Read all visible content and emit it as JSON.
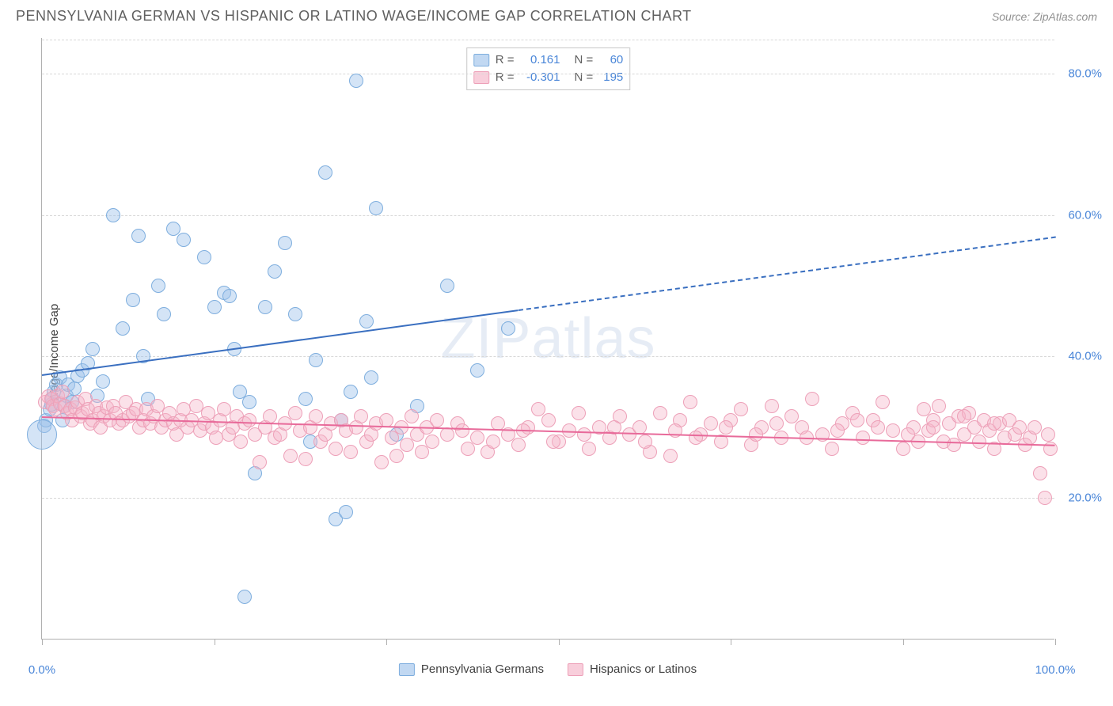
{
  "header": {
    "title": "PENNSYLVANIA GERMAN VS HISPANIC OR LATINO WAGE/INCOME GAP CORRELATION CHART",
    "source": "Source: ZipAtlas.com"
  },
  "chart": {
    "type": "scatter",
    "ylabel": "Wage/Income Gap",
    "watermark": "ZIPatlas",
    "background_color": "#ffffff",
    "grid_color": "#d8d8d8",
    "axis_color": "#b0b0b0",
    "tick_label_color": "#4a86d8",
    "xlim": [
      0,
      100
    ],
    "ylim": [
      0,
      85
    ],
    "x_ticks": [
      0,
      17,
      34,
      51,
      68,
      85,
      100
    ],
    "x_tick_labels": {
      "0": "0.0%",
      "100": "100.0%"
    },
    "y_gridlines": [
      20,
      40,
      60,
      80
    ],
    "y_grid_labels": {
      "20": "20.0%",
      "40": "40.0%",
      "60": "60.0%",
      "80": "80.0%"
    },
    "marker_size": 18,
    "series": [
      {
        "name": "Pennsylvania Germans",
        "color_fill": "rgba(160,195,235,0.45)",
        "color_stroke": "#7eaede",
        "r_value": "0.161",
        "n_value": "60",
        "trend": {
          "x1": 0,
          "y1": 37.5,
          "x2": 100,
          "y2": 57,
          "solid_until_x": 47,
          "color": "#3a6fc0"
        },
        "points": [
          [
            0.2,
            30.2
          ],
          [
            0.4,
            31.0
          ],
          [
            0.8,
            32.5
          ],
          [
            0.9,
            33.2
          ],
          [
            1.0,
            34.0
          ],
          [
            1.2,
            35.0
          ],
          [
            1.4,
            36.0
          ],
          [
            1.8,
            37.0
          ],
          [
            2.0,
            31.0
          ],
          [
            2.2,
            33.0
          ],
          [
            2.4,
            34.5
          ],
          [
            2.6,
            36.0
          ],
          [
            3.0,
            33.5
          ],
          [
            3.2,
            35.5
          ],
          [
            3.5,
            37.2
          ],
          [
            4.0,
            38.0
          ],
          [
            4.5,
            39.0
          ],
          [
            5.0,
            41.0
          ],
          [
            5.5,
            34.5
          ],
          [
            6.0,
            36.5
          ],
          [
            7.0,
            60.0
          ],
          [
            8.0,
            44.0
          ],
          [
            9.0,
            48.0
          ],
          [
            9.5,
            57.0
          ],
          [
            10.0,
            40.0
          ],
          [
            10.5,
            34.0
          ],
          [
            11.5,
            50.0
          ],
          [
            12.0,
            46.0
          ],
          [
            13.0,
            58.0
          ],
          [
            14.0,
            56.5
          ],
          [
            16.0,
            54.0
          ],
          [
            17.0,
            47.0
          ],
          [
            18.0,
            49.0
          ],
          [
            18.5,
            48.5
          ],
          [
            19.0,
            41.0
          ],
          [
            19.5,
            35.0
          ],
          [
            20.0,
            6.0
          ],
          [
            20.5,
            33.5
          ],
          [
            21.0,
            23.5
          ],
          [
            22.0,
            47.0
          ],
          [
            23.0,
            52.0
          ],
          [
            24.0,
            56.0
          ],
          [
            25.0,
            46.0
          ],
          [
            26.0,
            34.0
          ],
          [
            26.5,
            28.0
          ],
          [
            27.0,
            39.5
          ],
          [
            28.0,
            66.0
          ],
          [
            29.0,
            17.0
          ],
          [
            29.5,
            31.0
          ],
          [
            30.0,
            18.0
          ],
          [
            30.5,
            35.0
          ],
          [
            31.0,
            79.0
          ],
          [
            32.0,
            45.0
          ],
          [
            32.5,
            37.0
          ],
          [
            33.0,
            61.0
          ],
          [
            35.0,
            29.0
          ],
          [
            37.0,
            33.0
          ],
          [
            40.0,
            50.0
          ],
          [
            43.0,
            38.0
          ],
          [
            46.0,
            44.0
          ]
        ],
        "points_custom_size": [
          [
            0.0,
            29.0,
            38
          ]
        ]
      },
      {
        "name": "Hispanics or Latinos",
        "color_fill": "rgba(245,180,200,0.40)",
        "color_stroke": "#eda0b8",
        "r_value": "-0.301",
        "n_value": "195",
        "trend": {
          "x1": 0,
          "y1": 31.5,
          "x2": 100,
          "y2": 27.5,
          "solid_until_x": 100,
          "color": "#e86a9a"
        },
        "points": [
          [
            0.3,
            33.5
          ],
          [
            0.6,
            34.3
          ],
          [
            0.9,
            34.0
          ],
          [
            1.1,
            33.0
          ],
          [
            1.3,
            32.5
          ],
          [
            1.6,
            34.5
          ],
          [
            1.8,
            33.3
          ],
          [
            2.0,
            35.0
          ],
          [
            2.3,
            33.0
          ],
          [
            2.5,
            32.0
          ],
          [
            2.8,
            32.5
          ],
          [
            3.0,
            31.0
          ],
          [
            3.3,
            32.8
          ],
          [
            3.5,
            33.5
          ],
          [
            3.8,
            31.5
          ],
          [
            4.0,
            32.0
          ],
          [
            4.3,
            34.0
          ],
          [
            4.5,
            32.5
          ],
          [
            4.8,
            30.5
          ],
          [
            5.0,
            31.0
          ],
          [
            5.3,
            33.0
          ],
          [
            5.6,
            32.0
          ],
          [
            5.8,
            30.0
          ],
          [
            6.1,
            31.5
          ],
          [
            6.4,
            32.8
          ],
          [
            6.7,
            31.0
          ],
          [
            7.0,
            33.0
          ],
          [
            7.3,
            32.0
          ],
          [
            7.6,
            30.5
          ],
          [
            8.0,
            31.0
          ],
          [
            8.3,
            33.5
          ],
          [
            8.6,
            31.5
          ],
          [
            9.0,
            32.0
          ],
          [
            9.3,
            32.5
          ],
          [
            9.6,
            30.0
          ],
          [
            10.0,
            31.0
          ],
          [
            10.3,
            32.5
          ],
          [
            10.7,
            30.5
          ],
          [
            11.0,
            31.5
          ],
          [
            11.4,
            33.0
          ],
          [
            11.8,
            30.0
          ],
          [
            12.2,
            31.0
          ],
          [
            12.6,
            32.0
          ],
          [
            13.0,
            30.5
          ],
          [
            13.3,
            29.0
          ],
          [
            13.7,
            31.0
          ],
          [
            14.0,
            32.5
          ],
          [
            14.4,
            30.0
          ],
          [
            14.8,
            31.0
          ],
          [
            15.2,
            33.0
          ],
          [
            15.6,
            29.5
          ],
          [
            16.0,
            30.5
          ],
          [
            16.4,
            32.0
          ],
          [
            16.8,
            30.0
          ],
          [
            17.2,
            28.5
          ],
          [
            17.6,
            31.0
          ],
          [
            18.0,
            32.5
          ],
          [
            18.4,
            29.0
          ],
          [
            18.8,
            30.0
          ],
          [
            19.2,
            31.5
          ],
          [
            19.6,
            28.0
          ],
          [
            20.0,
            30.5
          ],
          [
            20.5,
            31.0
          ],
          [
            21.0,
            29.0
          ],
          [
            21.5,
            25.0
          ],
          [
            22.0,
            30.0
          ],
          [
            22.5,
            31.5
          ],
          [
            23.0,
            28.5
          ],
          [
            23.5,
            29.0
          ],
          [
            24.0,
            30.5
          ],
          [
            24.5,
            26.0
          ],
          [
            25.0,
            32.0
          ],
          [
            25.5,
            29.5
          ],
          [
            26.0,
            25.5
          ],
          [
            26.5,
            30.0
          ],
          [
            27.0,
            31.5
          ],
          [
            27.5,
            28.0
          ],
          [
            28.0,
            29.0
          ],
          [
            28.5,
            30.5
          ],
          [
            29.0,
            27.0
          ],
          [
            29.5,
            31.0
          ],
          [
            30.0,
            29.5
          ],
          [
            30.5,
            26.5
          ],
          [
            31.0,
            30.0
          ],
          [
            31.5,
            31.5
          ],
          [
            32.0,
            28.0
          ],
          [
            32.5,
            29.0
          ],
          [
            33.0,
            30.5
          ],
          [
            33.5,
            25.0
          ],
          [
            34.0,
            31.0
          ],
          [
            34.5,
            28.5
          ],
          [
            35.0,
            26.0
          ],
          [
            35.5,
            30.0
          ],
          [
            36.0,
            27.5
          ],
          [
            36.5,
            31.5
          ],
          [
            37.0,
            29.0
          ],
          [
            37.5,
            26.5
          ],
          [
            38.0,
            30.0
          ],
          [
            38.5,
            28.0
          ],
          [
            39.0,
            31.0
          ],
          [
            40.0,
            29.0
          ],
          [
            41.0,
            30.5
          ],
          [
            42.0,
            27.0
          ],
          [
            43.0,
            28.5
          ],
          [
            44.0,
            26.5
          ],
          [
            45.0,
            30.5
          ],
          [
            46.0,
            29.0
          ],
          [
            47.0,
            27.5
          ],
          [
            48.0,
            30.0
          ],
          [
            49.0,
            32.5
          ],
          [
            50.0,
            31.0
          ],
          [
            51.0,
            28.0
          ],
          [
            52.0,
            29.5
          ],
          [
            53.0,
            32.0
          ],
          [
            54.0,
            27.0
          ],
          [
            55.0,
            30.0
          ],
          [
            56.0,
            28.5
          ],
          [
            57.0,
            31.5
          ],
          [
            58.0,
            29.0
          ],
          [
            59.0,
            30.0
          ],
          [
            60.0,
            26.5
          ],
          [
            61.0,
            32.0
          ],
          [
            62.0,
            26.0
          ],
          [
            63.0,
            31.0
          ],
          [
            64.0,
            33.5
          ],
          [
            65.0,
            29.0
          ],
          [
            66.0,
            30.5
          ],
          [
            67.0,
            28.0
          ],
          [
            68.0,
            31.0
          ],
          [
            69.0,
            32.5
          ],
          [
            70.0,
            27.5
          ],
          [
            71.0,
            30.0
          ],
          [
            72.0,
            33.0
          ],
          [
            73.0,
            28.5
          ],
          [
            74.0,
            31.5
          ],
          [
            75.0,
            30.0
          ],
          [
            76.0,
            34.0
          ],
          [
            77.0,
            29.0
          ],
          [
            78.0,
            27.0
          ],
          [
            79.0,
            30.5
          ],
          [
            80.0,
            32.0
          ],
          [
            81.0,
            28.5
          ],
          [
            82.0,
            31.0
          ],
          [
            83.0,
            33.5
          ],
          [
            84.0,
            29.5
          ],
          [
            85.0,
            27.0
          ],
          [
            86.0,
            30.0
          ],
          [
            86.5,
            28.0
          ],
          [
            87.0,
            32.5
          ],
          [
            87.5,
            29.5
          ],
          [
            88.0,
            31.0
          ],
          [
            88.5,
            33.0
          ],
          [
            89.0,
            28.0
          ],
          [
            89.5,
            30.5
          ],
          [
            90.0,
            27.5
          ],
          [
            90.5,
            31.5
          ],
          [
            91.0,
            29.0
          ],
          [
            91.5,
            32.0
          ],
          [
            92.0,
            30.0
          ],
          [
            92.5,
            28.0
          ],
          [
            93.0,
            31.0
          ],
          [
            93.5,
            29.5
          ],
          [
            94.0,
            27.0
          ],
          [
            94.5,
            30.5
          ],
          [
            95.0,
            28.5
          ],
          [
            95.5,
            31.0
          ],
          [
            96.0,
            29.0
          ],
          [
            96.5,
            30.0
          ],
          [
            97.0,
            27.5
          ],
          [
            97.5,
            28.5
          ],
          [
            98.0,
            30.0
          ],
          [
            98.5,
            23.5
          ],
          [
            99.0,
            20.0
          ],
          [
            99.3,
            29.0
          ],
          [
            99.5,
            27.0
          ],
          [
            94.0,
            30.5
          ],
          [
            91.0,
            31.5
          ],
          [
            88.0,
            30.0
          ],
          [
            85.5,
            29.0
          ],
          [
            82.5,
            30.0
          ],
          [
            80.5,
            31.0
          ],
          [
            78.5,
            29.5
          ],
          [
            75.5,
            28.5
          ],
          [
            72.5,
            30.5
          ],
          [
            70.5,
            29.0
          ],
          [
            67.5,
            30.0
          ],
          [
            64.5,
            28.5
          ],
          [
            62.5,
            29.5
          ],
          [
            59.5,
            28.0
          ],
          [
            56.5,
            30.0
          ],
          [
            53.5,
            29.0
          ],
          [
            50.5,
            28.0
          ],
          [
            47.5,
            29.5
          ],
          [
            44.5,
            28.0
          ],
          [
            41.5,
            29.5
          ]
        ]
      }
    ]
  },
  "stat_labels": {
    "r": "R =",
    "n": "N ="
  }
}
